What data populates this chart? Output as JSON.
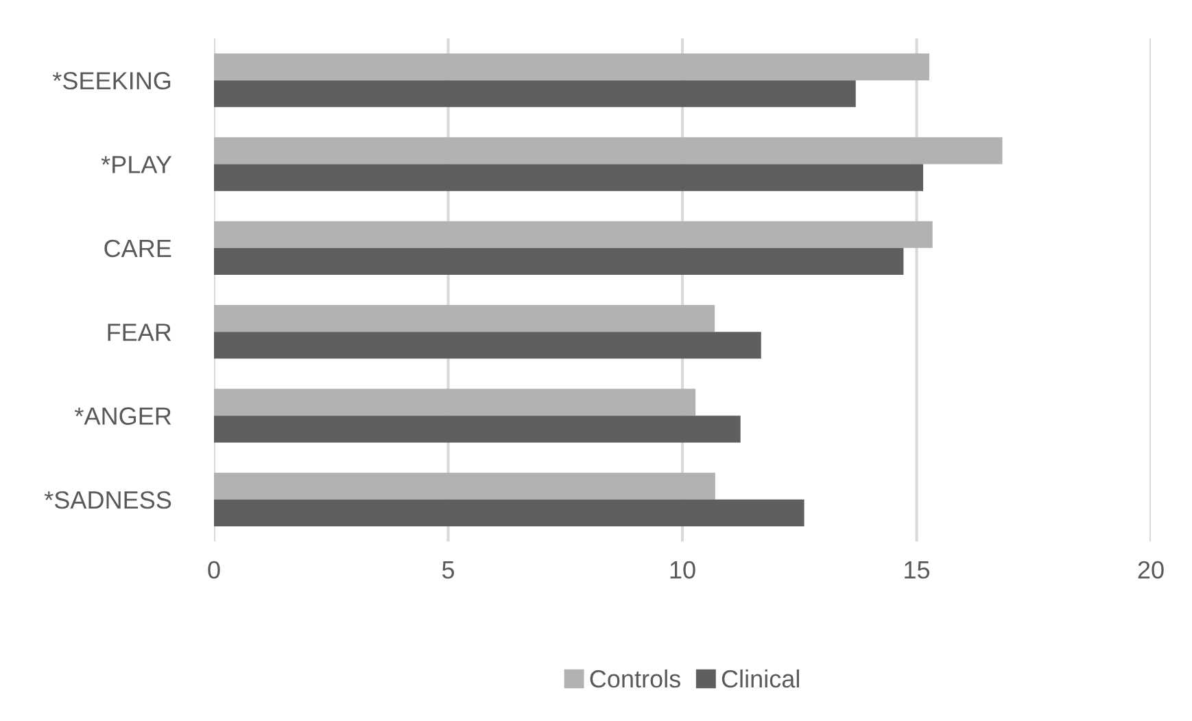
{
  "chart_data": {
    "type": "bar",
    "orientation": "horizontal",
    "categories": [
      "*SEEKING",
      "*PLAY",
      "CARE",
      "FEAR",
      "*ANGER",
      "*SADNESS"
    ],
    "series": [
      {
        "name": "Controls",
        "color": "#b2b2b2",
        "values": [
          15.27,
          16.83,
          15.34,
          10.69,
          10.28,
          10.7
        ]
      },
      {
        "name": "Clinical",
        "color": "#5f5f5f",
        "values": [
          13.7,
          15.14,
          14.72,
          11.68,
          11.24,
          12.6
        ]
      }
    ],
    "xlim": [
      0,
      20
    ],
    "xticks": [
      0,
      5,
      10,
      15,
      20
    ],
    "grid": "x",
    "legend": "bottom"
  }
}
